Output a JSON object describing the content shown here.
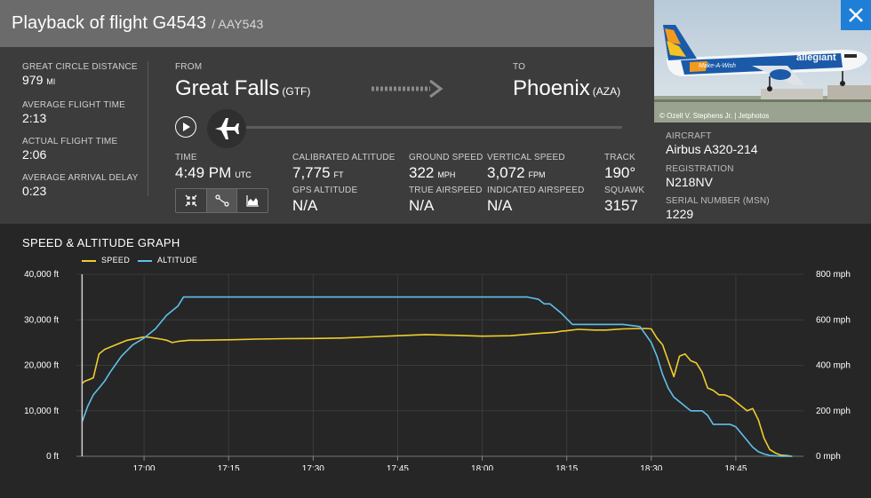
{
  "header": {
    "title": "Playback of flight G4543",
    "subtitle": "/ AAY543"
  },
  "stats": [
    {
      "label": "GREAT CIRCLE DISTANCE",
      "value": "979",
      "unit": "MI"
    },
    {
      "label": "AVERAGE FLIGHT TIME",
      "value": "2:13",
      "unit": ""
    },
    {
      "label": "ACTUAL FLIGHT TIME",
      "value": "2:06",
      "unit": ""
    },
    {
      "label": "AVERAGE ARRIVAL DELAY",
      "value": "0:23",
      "unit": ""
    }
  ],
  "route": {
    "from_label": "FROM",
    "from_city": "Great Falls",
    "from_code": "(GTF)",
    "to_label": "TO",
    "to_city": "Phoenix",
    "to_code": "(AZA)"
  },
  "playback": {
    "progress": 0.0
  },
  "metrics": {
    "time": {
      "label": "TIME",
      "value": "4:49 PM",
      "unit": "UTC"
    },
    "cal_alt": {
      "label": "CALIBRATED ALTITUDE",
      "value": "7,775",
      "unit": "FT"
    },
    "gps_alt": {
      "label": "GPS ALTITUDE",
      "value": "N/A"
    },
    "ground_speed": {
      "label": "GROUND SPEED",
      "value": "322",
      "unit": "MPH"
    },
    "true_airspeed": {
      "label": "TRUE AIRSPEED",
      "value": "N/A"
    },
    "vertical_speed": {
      "label": "VERTICAL SPEED",
      "value": "3,072",
      "unit": "FPM"
    },
    "indicated_airspeed": {
      "label": "INDICATED AIRSPEED",
      "value": "N/A"
    },
    "track": {
      "label": "TRACK",
      "value": "190°"
    },
    "squawk": {
      "label": "SQUAWK",
      "value": "3157"
    }
  },
  "photo": {
    "credit": "© Ozell V. Stephens Jr. | Jetphotos",
    "livery_text": "allegiant",
    "slogan": "Make-A-Wish"
  },
  "aircraft": {
    "type_label": "AIRCRAFT",
    "type_value": "Airbus A320-214",
    "reg_label": "REGISTRATION",
    "reg_value": "N218NV",
    "msn_label": "SERIAL NUMBER (MSN)",
    "msn_value": "1229"
  },
  "graph": {
    "title": "SPEED & ALTITUDE GRAPH",
    "legend_speed": "SPEED",
    "legend_altitude": "ALTITUDE"
  },
  "colors": {
    "speed": "#f0cc2e",
    "altitude": "#5fc0ea",
    "accent": "#1f7fd6"
  },
  "chart_data": {
    "type": "line",
    "x_ticks": [
      "17:00",
      "17:15",
      "17:30",
      "17:45",
      "18:00",
      "18:15",
      "18:30",
      "18:45"
    ],
    "x_tick_minutes": [
      60,
      75,
      90,
      105,
      120,
      135,
      150,
      165
    ],
    "xlim": [
      48,
      177
    ],
    "y_left_ticks": [
      "40,000 ft",
      "30,000 ft",
      "20,000 ft",
      "10,000 ft",
      "0 ft"
    ],
    "y_left_lim": [
      0,
      40000
    ],
    "y_right_ticks": [
      "800 mph",
      "600 mph",
      "400 mph",
      "200 mph",
      "0 mph"
    ],
    "y_right_lim": [
      0,
      800
    ],
    "cursor_minute": 49,
    "series": [
      {
        "name": "SPEED",
        "axis": "right",
        "x": [
          49,
          49.5,
          50,
          51,
          52,
          53,
          55,
          57,
          59,
          60,
          61,
          63,
          64,
          65,
          66,
          68,
          70,
          75,
          80,
          85,
          90,
          95,
          100,
          105,
          110,
          115,
          120,
          125,
          130,
          133,
          134,
          135,
          137,
          140,
          142,
          145,
          149,
          150,
          151,
          152,
          153,
          154,
          155,
          156,
          157,
          158,
          159,
          160,
          161,
          162,
          163,
          164,
          165,
          166,
          167,
          168,
          169,
          170,
          171,
          172,
          173,
          174,
          175
        ],
        "y": [
          320,
          330,
          335,
          345,
          450,
          470,
          490,
          510,
          520,
          525,
          523,
          515,
          510,
          500,
          505,
          510,
          510,
          512,
          515,
          517,
          518,
          520,
          525,
          530,
          535,
          532,
          528,
          530,
          540,
          545,
          550,
          552,
          558,
          555,
          555,
          560,
          562,
          560,
          520,
          490,
          420,
          350,
          440,
          450,
          420,
          410,
          370,
          300,
          290,
          270,
          270,
          260,
          240,
          220,
          200,
          210,
          160,
          80,
          30,
          15,
          5,
          3,
          0
        ]
      },
      {
        "name": "ALTITUDE",
        "axis": "left",
        "x": [
          49,
          50,
          51,
          52,
          53,
          54,
          56,
          58,
          60,
          62,
          64,
          66,
          67,
          70,
          80,
          90,
          100,
          110,
          120,
          128,
          130,
          131,
          132,
          134,
          136,
          138,
          140,
          145,
          148,
          150,
          151,
          152,
          153,
          154,
          155,
          156,
          157,
          158,
          159,
          160,
          161,
          162,
          163,
          164,
          165,
          166,
          167,
          168,
          169,
          170,
          171,
          172,
          173,
          174,
          175
        ],
        "y": [
          7500,
          11000,
          13500,
          15000,
          16500,
          18500,
          22000,
          24500,
          26000,
          28000,
          31000,
          33000,
          35000,
          35000,
          35000,
          35000,
          35000,
          35000,
          35000,
          35000,
          34500,
          33500,
          33500,
          31500,
          29000,
          29000,
          29000,
          29000,
          28500,
          25000,
          22000,
          18000,
          15000,
          13000,
          12000,
          11000,
          10000,
          10000,
          10000,
          9000,
          7000,
          7000,
          7000,
          7000,
          6500,
          5000,
          3500,
          2000,
          1000,
          500,
          200,
          100,
          0,
          0,
          0
        ]
      }
    ]
  }
}
